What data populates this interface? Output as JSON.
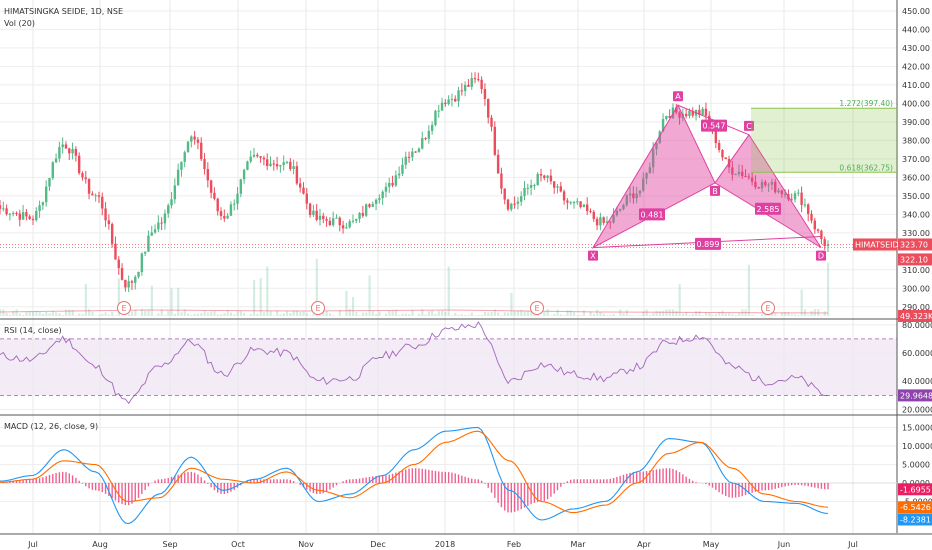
{
  "header": {
    "title": "HIMATSINGKA SEIDE, 1D, NSE",
    "vol_label": "Vol (20)"
  },
  "panes": {
    "rsi_label": "RSI (14, close)",
    "macd_label": "MACD (12, 26, close, 9)"
  },
  "time_axis": [
    "Jul",
    "Aug",
    "Sep",
    "Oct",
    "Nov",
    "Dec",
    "2018",
    "Feb",
    "Mar",
    "Apr",
    "May",
    "Jun",
    "Jul"
  ],
  "earnings_marker": "E",
  "price_axis_ticks": [
    "450.00",
    "440.00",
    "430.00",
    "420.00",
    "410.00",
    "400.00",
    "390.00",
    "380.00",
    "370.00",
    "360.00",
    "350.00",
    "340.00",
    "330.00",
    "310.00",
    "300.00",
    "290.00"
  ],
  "rsi_axis_ticks": [
    "80.0000",
    "60.0000",
    "40.0000",
    "20.0000"
  ],
  "macd_axis_ticks": [
    "15.0000",
    "10.0000",
    "5.0000",
    "0.0000",
    "-5.0000"
  ],
  "value_tags": {
    "price_last": "323.70",
    "symbol": "HIMATSEIDE",
    "price_line": "322.10",
    "volume": "49.323K",
    "rsi": "29.9648",
    "macd_hist": "-1.6955",
    "macd_signal": "-6.5426",
    "macd_line": "-8.2381"
  },
  "harmonic": {
    "points": [
      "X",
      "A",
      "B",
      "C",
      "D"
    ],
    "ratios": [
      "0.481",
      "0.547",
      "2.585",
      "0.899"
    ]
  },
  "fib_labels": [
    "1.272(397.40)",
    "0.618(362.75)"
  ],
  "colors": {
    "up": "#53b987",
    "down": "#eb4d5c",
    "pattern": "#e040a0",
    "rsi": "#8e44ad",
    "macd": "#2196f3",
    "signal": "#ff6d00"
  },
  "chart_data": [
    {
      "type": "candlestick",
      "title": "HIMATSINGKA SEIDE, 1D, NSE",
      "x": [
        "2017-06-19",
        "2017-07-03",
        "2017-07-17",
        "2017-07-31",
        "2017-08-14",
        "2017-08-28",
        "2017-09-11",
        "2017-09-25",
        "2017-10-09",
        "2017-10-23",
        "2017-11-06",
        "2017-11-20",
        "2017-12-04",
        "2017-12-18",
        "2018-01-01",
        "2018-01-15",
        "2018-01-29",
        "2018-02-12",
        "2018-02-26",
        "2018-03-12",
        "2018-03-26",
        "2018-04-09",
        "2018-04-23",
        "2018-05-07",
        "2018-05-21",
        "2018-06-04",
        "2018-06-18"
      ],
      "values": [
        343,
        338,
        378,
        350,
        302,
        335,
        381,
        339,
        370,
        367,
        337,
        335,
        352,
        375,
        402,
        412,
        345,
        360,
        345,
        335,
        352,
        395,
        395,
        364,
        356,
        350,
        323.7
      ],
      "ylim": [
        285,
        455
      ],
      "ylabel": "",
      "grid": true
    },
    {
      "type": "line",
      "title": "RSI (14, close)",
      "x": [
        "2017-06-19",
        "2017-07-03",
        "2017-07-17",
        "2017-07-31",
        "2017-08-14",
        "2017-08-28",
        "2017-09-11",
        "2017-09-25",
        "2017-10-09",
        "2017-10-23",
        "2017-11-06",
        "2017-11-20",
        "2017-12-04",
        "2017-12-18",
        "2018-01-01",
        "2018-01-15",
        "2018-01-29",
        "2018-02-12",
        "2018-02-26",
        "2018-03-12",
        "2018-03-26",
        "2018-04-09",
        "2018-04-23",
        "2018-05-07",
        "2018-05-21",
        "2018-06-04",
        "2018-06-18"
      ],
      "values": [
        58,
        55,
        70,
        50,
        25,
        50,
        68,
        45,
        62,
        60,
        40,
        42,
        58,
        65,
        76,
        80,
        40,
        52,
        45,
        42,
        50,
        68,
        72,
        50,
        40,
        42,
        29.96
      ],
      "ylim": [
        18,
        82
      ],
      "bands": [
        70,
        30
      ]
    },
    {
      "type": "line",
      "title": "MACD (12, 26, close, 9)",
      "x": [
        "2017-06-19",
        "2017-07-03",
        "2017-07-17",
        "2017-07-31",
        "2017-08-14",
        "2017-08-28",
        "2017-09-11",
        "2017-09-25",
        "2017-10-09",
        "2017-10-23",
        "2017-11-06",
        "2017-11-20",
        "2017-12-04",
        "2017-12-18",
        "2018-01-01",
        "2018-01-15",
        "2018-01-29",
        "2018-02-12",
        "2018-02-26",
        "2018-03-12",
        "2018-03-26",
        "2018-04-09",
        "2018-04-23",
        "2018-05-07",
        "2018-05-21",
        "2018-06-04",
        "2018-06-18"
      ],
      "series": [
        {
          "values": [
            0.5,
            2,
            9,
            3,
            -11,
            -3,
            7,
            -2,
            1,
            4,
            -5,
            -3,
            2,
            9,
            14,
            15,
            -2,
            -10,
            -7,
            -5,
            3,
            12,
            11,
            0,
            -5,
            -5.5,
            -8.24
          ]
        },
        {
          "values": [
            0.2,
            1,
            6,
            5,
            -5,
            -4,
            4,
            1,
            0,
            3,
            -2,
            -4,
            0,
            5,
            11,
            14,
            6,
            -5,
            -8,
            -6,
            0,
            8,
            11,
            4,
            -3,
            -5,
            -6.54
          ]
        },
        {
          "values": [
            0.3,
            1,
            3,
            -2,
            -6,
            1,
            3,
            -3,
            1,
            1,
            -3,
            1,
            2,
            4,
            3,
            1,
            -8,
            -5,
            1,
            1,
            3,
            4,
            0,
            -4,
            -2,
            -0.5,
            -1.7
          ]
        }
      ],
      "ylim": [
        -10,
        17
      ]
    }
  ]
}
